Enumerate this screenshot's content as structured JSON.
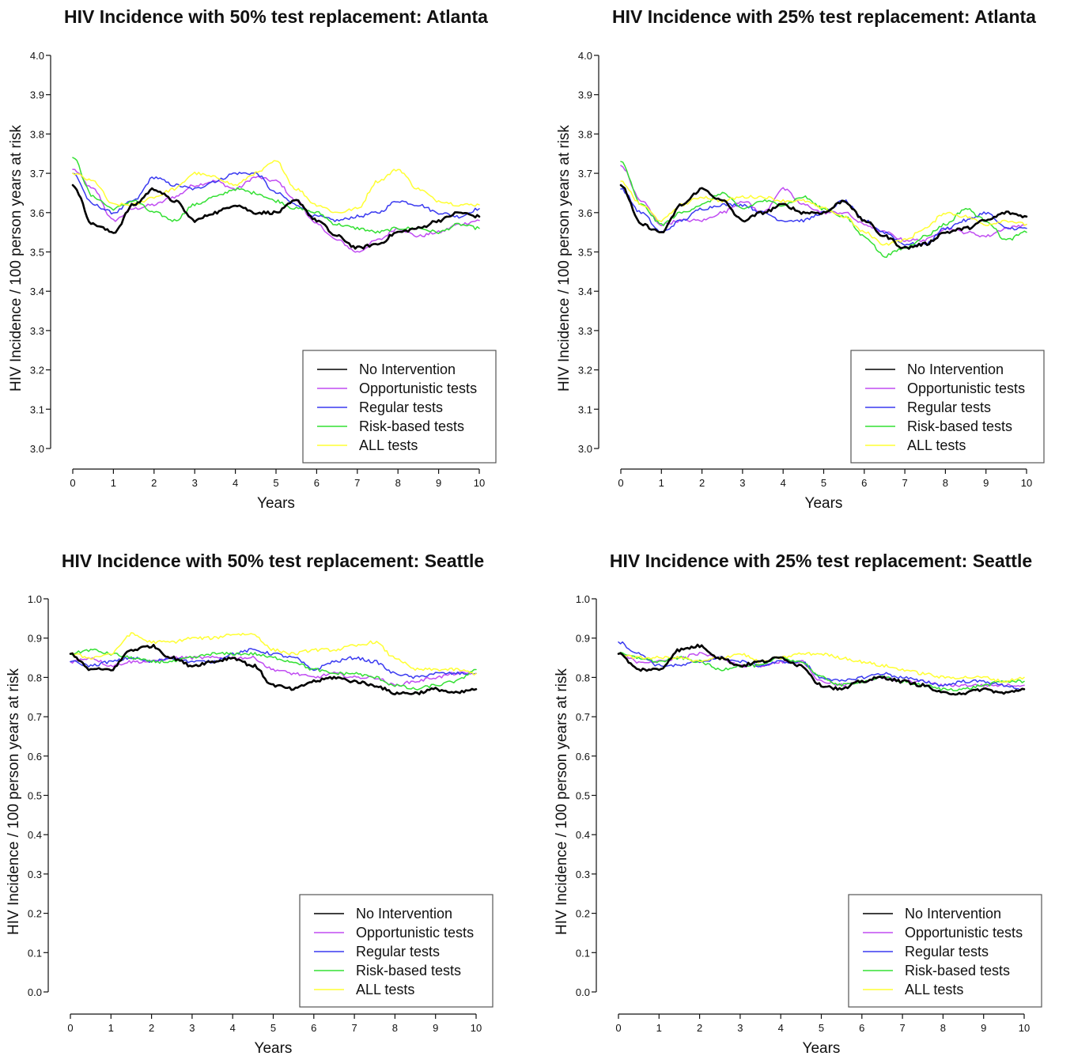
{
  "figure": {
    "panels": [
      {
        "title": "HIV Incidence with 50% test replacement: Atlanta"
      },
      {
        "title": "HIV Incidence with 25% test replacement: Atlanta"
      },
      {
        "title": "HIV Incidence with 50% test replacement: Seattle"
      },
      {
        "title": "HIV Incidence with 25% test replacement: Seattle"
      }
    ]
  },
  "colors": {
    "No Intervention": "#000000",
    "Opportunistic tests": "#c04cf2",
    "Regular tests": "#3a3af0",
    "Risk-based tests": "#34e034",
    "ALL tests": "#ffff33"
  },
  "chart_data": [
    {
      "type": "line",
      "title": "HIV Incidence with 50% test replacement: Atlanta",
      "xlabel": "Years",
      "ylabel": "HIV Incidence / 100 person years at risk",
      "xlim": [
        0,
        10
      ],
      "ylim": [
        3.0,
        4.0
      ],
      "xticks": [
        "0",
        "1",
        "2",
        "3",
        "4",
        "5",
        "6",
        "7",
        "8",
        "9",
        "10"
      ],
      "yticks": [
        "3.0",
        "3.1",
        "3.2",
        "3.3",
        "3.4",
        "3.5",
        "3.6",
        "3.7",
        "3.8",
        "3.9",
        "4.0"
      ],
      "grid": false,
      "legend_position": "bottom-right",
      "x": [
        0,
        0.5,
        1,
        1.5,
        2,
        2.5,
        3,
        3.5,
        4,
        4.5,
        5,
        5.5,
        6,
        6.5,
        7,
        7.5,
        8,
        8.5,
        9,
        9.5,
        10
      ],
      "series": [
        {
          "name": "No Intervention",
          "values": [
            3.67,
            3.57,
            3.55,
            3.62,
            3.66,
            3.63,
            3.58,
            3.6,
            3.62,
            3.6,
            3.6,
            3.63,
            3.58,
            3.54,
            3.51,
            3.52,
            3.55,
            3.56,
            3.58,
            3.6,
            3.59
          ]
        },
        {
          "name": "Opportunistic tests",
          "values": [
            3.71,
            3.66,
            3.58,
            3.61,
            3.62,
            3.64,
            3.67,
            3.68,
            3.66,
            3.69,
            3.68,
            3.63,
            3.57,
            3.53,
            3.5,
            3.53,
            3.56,
            3.54,
            3.55,
            3.57,
            3.58
          ]
        },
        {
          "name": "Regular tests",
          "values": [
            3.7,
            3.62,
            3.6,
            3.63,
            3.69,
            3.67,
            3.66,
            3.68,
            3.7,
            3.7,
            3.65,
            3.62,
            3.59,
            3.58,
            3.59,
            3.6,
            3.63,
            3.62,
            3.6,
            3.59,
            3.61
          ]
        },
        {
          "name": "Risk-based tests",
          "values": [
            3.74,
            3.64,
            3.61,
            3.63,
            3.6,
            3.58,
            3.62,
            3.64,
            3.66,
            3.65,
            3.63,
            3.61,
            3.6,
            3.57,
            3.56,
            3.55,
            3.56,
            3.56,
            3.55,
            3.57,
            3.56
          ]
        },
        {
          "name": "ALL tests",
          "values": [
            3.7,
            3.68,
            3.62,
            3.62,
            3.64,
            3.66,
            3.7,
            3.69,
            3.67,
            3.7,
            3.73,
            3.66,
            3.62,
            3.6,
            3.61,
            3.68,
            3.71,
            3.66,
            3.63,
            3.62,
            3.62
          ]
        }
      ]
    },
    {
      "type": "line",
      "title": "HIV Incidence with 25% test replacement: Atlanta",
      "xlabel": "Years",
      "ylabel": "HIV Incidence / 100 person years at risk",
      "xlim": [
        0,
        10
      ],
      "ylim": [
        3.0,
        4.0
      ],
      "xticks": [
        "0",
        "1",
        "2",
        "3",
        "4",
        "5",
        "6",
        "7",
        "8",
        "9",
        "10"
      ],
      "yticks": [
        "3.0",
        "3.1",
        "3.2",
        "3.3",
        "3.4",
        "3.5",
        "3.6",
        "3.7",
        "3.8",
        "3.9",
        "4.0"
      ],
      "grid": false,
      "legend_position": "bottom-right",
      "x": [
        0,
        0.5,
        1,
        1.5,
        2,
        2.5,
        3,
        3.5,
        4,
        4.5,
        5,
        5.5,
        6,
        6.5,
        7,
        7.5,
        8,
        8.5,
        9,
        9.5,
        10
      ],
      "series": [
        {
          "name": "No Intervention",
          "values": [
            3.67,
            3.57,
            3.55,
            3.62,
            3.66,
            3.63,
            3.58,
            3.6,
            3.62,
            3.6,
            3.6,
            3.63,
            3.58,
            3.54,
            3.51,
            3.52,
            3.55,
            3.56,
            3.58,
            3.6,
            3.59
          ]
        },
        {
          "name": "Opportunistic tests",
          "values": [
            3.72,
            3.63,
            3.57,
            3.58,
            3.58,
            3.6,
            3.63,
            3.6,
            3.66,
            3.62,
            3.6,
            3.6,
            3.57,
            3.55,
            3.53,
            3.53,
            3.56,
            3.55,
            3.54,
            3.56,
            3.57
          ]
        },
        {
          "name": "Regular tests",
          "values": [
            3.66,
            3.6,
            3.55,
            3.58,
            3.61,
            3.62,
            3.62,
            3.6,
            3.58,
            3.58,
            3.6,
            3.63,
            3.58,
            3.55,
            3.52,
            3.52,
            3.56,
            3.58,
            3.6,
            3.56,
            3.56
          ]
        },
        {
          "name": "Risk-based tests",
          "values": [
            3.73,
            3.62,
            3.57,
            3.6,
            3.62,
            3.65,
            3.61,
            3.63,
            3.62,
            3.64,
            3.61,
            3.59,
            3.54,
            3.49,
            3.51,
            3.54,
            3.57,
            3.61,
            3.58,
            3.53,
            3.55
          ]
        },
        {
          "name": "ALL tests",
          "values": [
            3.68,
            3.62,
            3.58,
            3.62,
            3.64,
            3.63,
            3.64,
            3.64,
            3.63,
            3.63,
            3.61,
            3.59,
            3.55,
            3.52,
            3.53,
            3.56,
            3.6,
            3.59,
            3.57,
            3.58,
            3.57
          ]
        }
      ]
    },
    {
      "type": "line",
      "title": "HIV Incidence with 50% test replacement: Seattle",
      "xlabel": "Years",
      "ylabel": "HIV Incidence / 100 person years at risk",
      "xlim": [
        0,
        10
      ],
      "ylim": [
        0.0,
        1.0
      ],
      "xticks": [
        "0",
        "1",
        "2",
        "3",
        "4",
        "5",
        "6",
        "7",
        "8",
        "9",
        "10"
      ],
      "yticks": [
        "0.0",
        "0.1",
        "0.2",
        "0.3",
        "0.4",
        "0.5",
        "0.6",
        "0.7",
        "0.8",
        "0.9",
        "1.0"
      ],
      "grid": false,
      "legend_position": "bottom-right",
      "x": [
        0,
        0.5,
        1,
        1.5,
        2,
        2.5,
        3,
        3.5,
        4,
        4.5,
        5,
        5.5,
        6,
        6.5,
        7,
        7.5,
        8,
        8.5,
        9,
        9.5,
        10
      ],
      "series": [
        {
          "name": "No Intervention",
          "values": [
            0.86,
            0.82,
            0.82,
            0.87,
            0.88,
            0.85,
            0.83,
            0.84,
            0.85,
            0.83,
            0.78,
            0.77,
            0.79,
            0.8,
            0.79,
            0.78,
            0.76,
            0.76,
            0.77,
            0.76,
            0.77
          ]
        },
        {
          "name": "Opportunistic tests",
          "values": [
            0.84,
            0.85,
            0.83,
            0.84,
            0.84,
            0.85,
            0.85,
            0.85,
            0.85,
            0.85,
            0.82,
            0.81,
            0.8,
            0.81,
            0.8,
            0.8,
            0.78,
            0.79,
            0.8,
            0.81,
            0.81
          ]
        },
        {
          "name": "Regular tests",
          "values": [
            0.84,
            0.83,
            0.84,
            0.85,
            0.84,
            0.85,
            0.84,
            0.84,
            0.86,
            0.87,
            0.86,
            0.85,
            0.82,
            0.84,
            0.85,
            0.84,
            0.81,
            0.8,
            0.81,
            0.81,
            0.81
          ]
        },
        {
          "name": "Risk-based tests",
          "values": [
            0.86,
            0.87,
            0.86,
            0.85,
            0.84,
            0.84,
            0.85,
            0.86,
            0.86,
            0.86,
            0.85,
            0.84,
            0.82,
            0.81,
            0.81,
            0.8,
            0.78,
            0.77,
            0.78,
            0.79,
            0.82
          ]
        },
        {
          "name": "ALL tests",
          "values": [
            0.86,
            0.85,
            0.86,
            0.91,
            0.89,
            0.89,
            0.9,
            0.9,
            0.91,
            0.91,
            0.87,
            0.86,
            0.87,
            0.87,
            0.88,
            0.89,
            0.85,
            0.82,
            0.82,
            0.82,
            0.81
          ]
        }
      ]
    },
    {
      "type": "line",
      "title": "HIV Incidence with 25% test replacement: Seattle",
      "xlabel": "Years",
      "ylabel": "HIV Incidence / 100 person years at risk",
      "xlim": [
        0,
        10
      ],
      "ylim": [
        0.0,
        1.0
      ],
      "xticks": [
        "0",
        "1",
        "2",
        "3",
        "4",
        "5",
        "6",
        "7",
        "8",
        "9",
        "10"
      ],
      "yticks": [
        "0.0",
        "0.1",
        "0.2",
        "0.3",
        "0.4",
        "0.5",
        "0.6",
        "0.7",
        "0.8",
        "0.9",
        "1.0"
      ],
      "grid": false,
      "legend_position": "bottom-right",
      "x": [
        0,
        0.5,
        1,
        1.5,
        2,
        2.5,
        3,
        3.5,
        4,
        4.5,
        5,
        5.5,
        6,
        6.5,
        7,
        7.5,
        8,
        8.5,
        9,
        9.5,
        10
      ],
      "series": [
        {
          "name": "No Intervention",
          "values": [
            0.86,
            0.82,
            0.82,
            0.87,
            0.88,
            0.85,
            0.83,
            0.84,
            0.85,
            0.83,
            0.78,
            0.77,
            0.79,
            0.8,
            0.79,
            0.78,
            0.76,
            0.76,
            0.77,
            0.76,
            0.77
          ]
        },
        {
          "name": "Opportunistic tests",
          "values": [
            0.86,
            0.84,
            0.84,
            0.85,
            0.86,
            0.85,
            0.83,
            0.83,
            0.84,
            0.84,
            0.79,
            0.78,
            0.79,
            0.8,
            0.79,
            0.79,
            0.78,
            0.78,
            0.78,
            0.78,
            0.78
          ]
        },
        {
          "name": "Regular tests",
          "values": [
            0.89,
            0.86,
            0.83,
            0.83,
            0.84,
            0.85,
            0.84,
            0.83,
            0.84,
            0.84,
            0.8,
            0.79,
            0.8,
            0.81,
            0.8,
            0.79,
            0.78,
            0.79,
            0.79,
            0.78,
            0.77
          ]
        },
        {
          "name": "Risk-based tests",
          "values": [
            0.86,
            0.85,
            0.84,
            0.85,
            0.84,
            0.82,
            0.83,
            0.83,
            0.85,
            0.84,
            0.8,
            0.78,
            0.79,
            0.8,
            0.79,
            0.78,
            0.77,
            0.77,
            0.78,
            0.79,
            0.79
          ]
        },
        {
          "name": "ALL tests",
          "values": [
            0.86,
            0.85,
            0.85,
            0.85,
            0.84,
            0.85,
            0.86,
            0.84,
            0.85,
            0.86,
            0.86,
            0.85,
            0.84,
            0.83,
            0.82,
            0.81,
            0.8,
            0.8,
            0.8,
            0.79,
            0.8
          ]
        }
      ]
    }
  ]
}
